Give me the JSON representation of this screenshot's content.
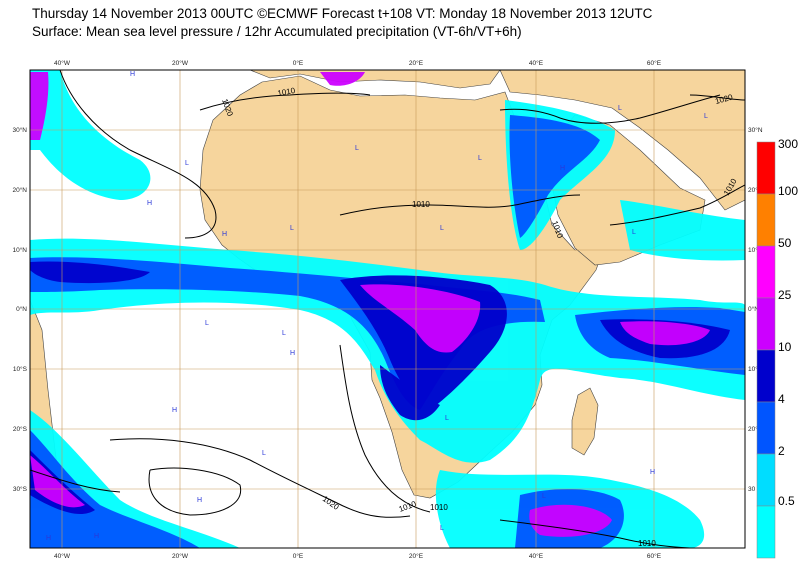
{
  "header": {
    "line1": "Thursday 14 November 2013 00UTC ©ECMWF Forecast t+108 VT: Monday 18 November 2013 12UTC",
    "line2": "Surface: Mean sea level pressure / 12hr Accumulated precipitation (VT-6h/VT+6h)"
  },
  "axes": {
    "lon_ticks": [
      "40°W",
      "20°W",
      "0°E",
      "20°E",
      "40°E",
      "60°E"
    ],
    "lat_ticks_left": [
      "30°N",
      "20°N",
      "10°N",
      "0°N",
      "10°S",
      "20°S",
      "30°S"
    ],
    "lat_ticks_right": [
      "30°N",
      "20°N",
      "10°N",
      "0°N",
      "10°S",
      "20°S",
      "30"
    ]
  },
  "isobar_labels": [
    "1010",
    "1020",
    "1010",
    "1020",
    "1010",
    "1010",
    "1010",
    "1020",
    "1010",
    "1010"
  ],
  "pressure_centres": [
    "H",
    "L",
    "L",
    "H",
    "L",
    "H",
    "L",
    "L",
    "L",
    "H",
    "L",
    "H",
    "H",
    "L",
    "H",
    "L",
    "H",
    "L",
    "H",
    "L",
    "L",
    "L",
    "H",
    "L"
  ],
  "legend": {
    "labels": [
      "300",
      "100",
      "50",
      "25",
      "10",
      "4",
      "2",
      "0.5"
    ],
    "colors": [
      "#ff0000",
      "#ff8000",
      "#ff00ff",
      "#cc00ff",
      "#0000cc",
      "#0055ff",
      "#00ddff",
      "#00ffff"
    ]
  },
  "colors": {
    "land": "#f6d59d",
    "sea": "#ffffff",
    "grid": "#c89a5a",
    "isobar": "#000000",
    "centre_letters": "#2a37d8"
  }
}
